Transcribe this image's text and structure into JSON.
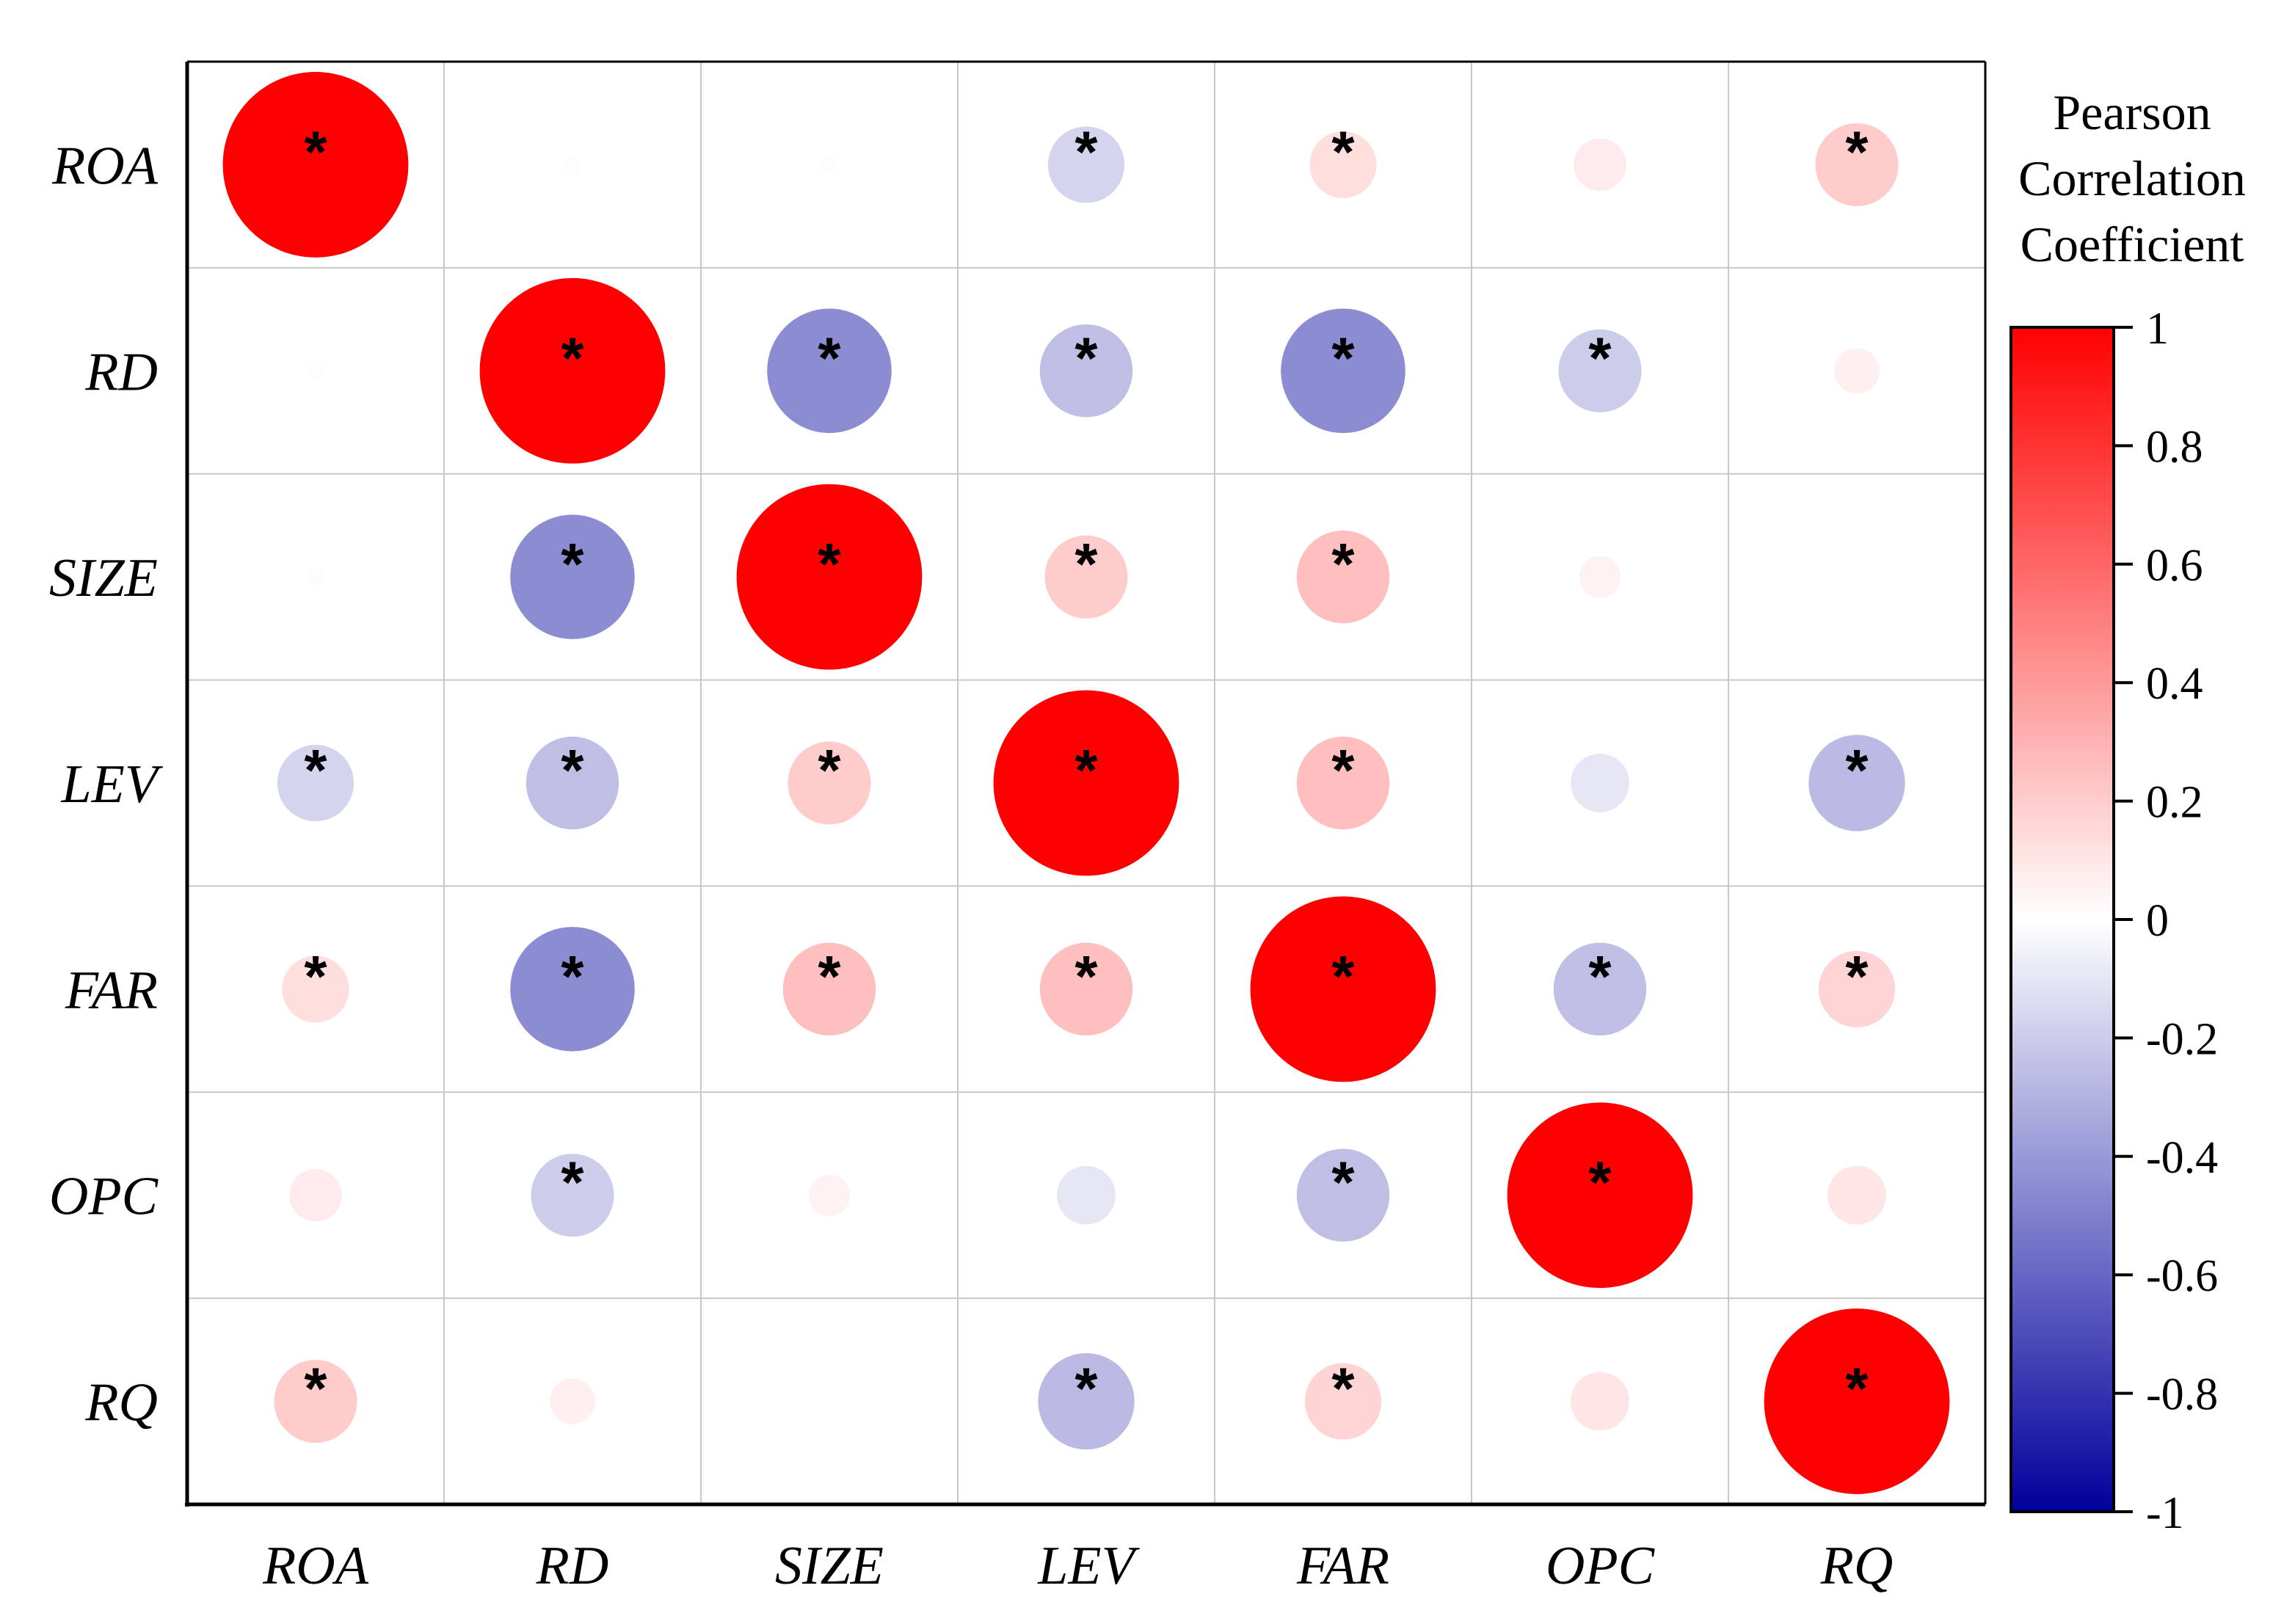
{
  "chart_data": {
    "type": "heatmap",
    "title": "",
    "variables": [
      "ROA",
      "RD",
      "SIZE",
      "LEV",
      "FAR",
      "OPC",
      "RQ"
    ],
    "matrix": [
      [
        1.0,
        0.01,
        0.01,
        -0.17,
        0.13,
        0.08,
        0.2
      ],
      [
        0.01,
        1.0,
        -0.45,
        -0.25,
        -0.45,
        -0.2,
        0.06
      ],
      [
        0.01,
        -0.45,
        1.0,
        0.2,
        0.25,
        0.05,
        0.0
      ],
      [
        -0.17,
        -0.25,
        0.2,
        1.0,
        0.25,
        -0.1,
        -0.27
      ],
      [
        0.13,
        -0.45,
        0.25,
        0.25,
        1.0,
        -0.25,
        0.17
      ],
      [
        0.08,
        -0.2,
        0.05,
        -0.1,
        -0.25,
        1.0,
        0.1
      ],
      [
        0.2,
        0.06,
        0.0,
        -0.27,
        0.17,
        0.1,
        1.0
      ]
    ],
    "significant": [
      [
        true,
        false,
        false,
        true,
        true,
        false,
        true
      ],
      [
        false,
        true,
        true,
        true,
        true,
        true,
        false
      ],
      [
        false,
        true,
        true,
        true,
        true,
        false,
        false
      ],
      [
        true,
        true,
        true,
        true,
        true,
        false,
        true
      ],
      [
        true,
        true,
        true,
        true,
        true,
        true,
        true
      ],
      [
        false,
        true,
        false,
        false,
        true,
        true,
        false
      ],
      [
        true,
        false,
        false,
        true,
        true,
        false,
        true
      ]
    ],
    "significance_marker": "*",
    "legend": {
      "title_lines": [
        "Pearson",
        "Correlation",
        "Coefficient"
      ],
      "ticks": [
        1,
        0.8,
        0.6,
        0.4,
        0.2,
        0,
        -0.2,
        -0.4,
        -0.6,
        -0.8,
        -1
      ],
      "tick_labels": [
        "1",
        "0.8",
        "0.6",
        "0.4",
        "0.2",
        "0",
        "-0.2",
        "-0.4",
        "-0.6",
        "-0.8",
        "-1"
      ],
      "range": [
        -1,
        1
      ],
      "placement": "right"
    },
    "colors": {
      "positive": "#ff0000",
      "neutral": "#ffffff",
      "negative": "#00009c",
      "grid": "#c8c8c8",
      "axis": "#000000"
    }
  }
}
